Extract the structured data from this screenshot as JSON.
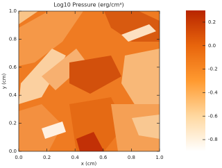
{
  "chart_data": {
    "type": "heatmap",
    "title": "Log10 Pressure (erg/cm³)",
    "x_label": "x (cm)",
    "y_label": "y (cm)",
    "xlim": [
      0,
      1
    ],
    "ylim": [
      0,
      1
    ],
    "xticks": [
      {
        "value": 0,
        "label": "0.0"
      },
      {
        "value": 0.2,
        "label": "0.2"
      },
      {
        "value": 0.4,
        "label": "0.4"
      },
      {
        "value": 0.6,
        "label": "0.6"
      },
      {
        "value": 0.8,
        "label": "0.8"
      },
      {
        "value": 1,
        "label": "1.0"
      }
    ],
    "yticks": [
      {
        "value": 0,
        "label": "0.0"
      },
      {
        "value": 0.2,
        "label": "0.2"
      },
      {
        "value": 0.4,
        "label": "0.4"
      },
      {
        "value": 0.6,
        "label": "0.6"
      },
      {
        "value": 0.8,
        "label": "0.8"
      },
      {
        "value": 1,
        "label": "1.0"
      }
    ],
    "clim": [
      -0.9,
      0.3
    ],
    "colorbar_ticks": [
      {
        "value": 0.2,
        "label": "0.2"
      },
      {
        "value": 0,
        "label": "0.0"
      },
      {
        "value": -0.2,
        "label": "-0.2"
      },
      {
        "value": -0.4,
        "label": "-0.4"
      },
      {
        "value": -0.6,
        "label": "-0.6"
      },
      {
        "value": -0.8,
        "label": "-0.8"
      }
    ],
    "colormap": [
      "#ffffff",
      "#ffd8a0",
      "#ff9a30",
      "#e8650c",
      "#b82500"
    ]
  }
}
